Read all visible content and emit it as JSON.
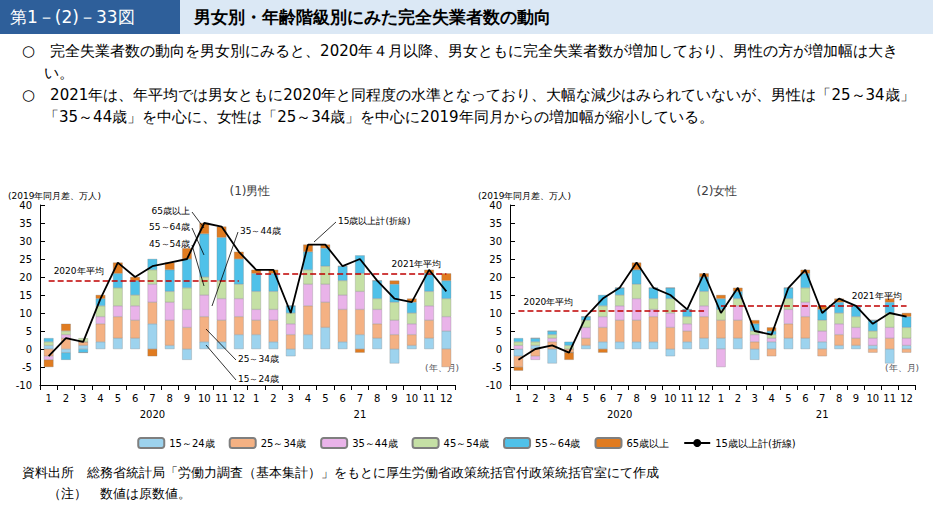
{
  "header": {
    "figure_no": "第1－(2)－33図",
    "title": "男女別・年齢階級別にみた完全失業者数の動向"
  },
  "bullets": [
    "○　完全失業者数の動向を男女別にみると、2020年４月以降、男女ともに完全失業者数が増加しており、男性の方が増加幅は大きい。",
    "○　2021年は、年平均では男女ともに2020年と同程度の水準となっており、大幅な減少はみられていないが、男性は「25～34歳」「35～44歳」を中心に、女性は「25～34歳」を中心に2019年同月からの増加幅が縮小している。"
  ],
  "notes": [
    "資料出所　総務省統計局「労働力調査（基本集計）」をもとに厚生労働省政策統括官付政策統括官室にて作成",
    "　　（注）　数値は原数値。"
  ],
  "chart_data": [
    {
      "type": "bar",
      "title": "(1)男性",
      "y_axis_label": "(2019年同月差、万人)",
      "x_axis_label": "(年、月)",
      "categories": [
        "1",
        "2",
        "3",
        "4",
        "5",
        "6",
        "7",
        "8",
        "9",
        "10",
        "11",
        "12",
        "1",
        "2",
        "3",
        "4",
        "5",
        "6",
        "7",
        "8",
        "9",
        "10",
        "11",
        "12"
      ],
      "years": [
        "2020",
        "21"
      ],
      "ylim": [
        -10,
        40
      ],
      "yticks": [
        -10,
        -5,
        0,
        5,
        10,
        15,
        20,
        25,
        30,
        35,
        40
      ],
      "stacked": true,
      "grid": false,
      "legend": "bottom",
      "series": [
        {
          "name": "15～24歳",
          "color": "#9dd3ee",
          "values": [
            1,
            -1,
            1,
            2,
            3,
            3,
            7,
            1,
            -3,
            2,
            2,
            4,
            4,
            2,
            -2,
            4,
            6,
            2,
            4,
            3,
            -4,
            1,
            3,
            5
          ]
        },
        {
          "name": "25～34歳",
          "color": "#f4b183",
          "values": [
            -2,
            3,
            1,
            5,
            6,
            5,
            6,
            7,
            6,
            7,
            6,
            5,
            4,
            6,
            4,
            8,
            7,
            9,
            7,
            4,
            4,
            3,
            5,
            -5
          ]
        },
        {
          "name": "35～44歳",
          "color": "#e9b3e9",
          "values": [
            -1,
            1,
            0,
            2,
            3,
            4,
            5,
            5,
            5,
            6,
            6,
            5,
            3,
            3,
            3,
            6,
            5,
            4,
            5,
            4,
            4,
            3,
            4,
            4
          ]
        },
        {
          "name": "45～54歳",
          "color": "#c5e0a5",
          "values": [
            1,
            1,
            1,
            3,
            5,
            3,
            4,
            3,
            6,
            5,
            5,
            4,
            5,
            5,
            3,
            4,
            5,
            4,
            5,
            3,
            5,
            3,
            4,
            5
          ]
        },
        {
          "name": "55～64歳",
          "color": "#4fc1e9",
          "values": [
            1,
            -2,
            -1,
            2,
            4,
            4,
            3,
            6,
            8,
            12,
            12,
            7,
            5,
            5,
            2,
            5,
            5,
            4,
            5,
            5,
            5,
            3,
            5,
            5
          ]
        },
        {
          "name": "65歳以上",
          "color": "#e07b20",
          "values": [
            -2,
            2,
            0,
            1,
            3,
            1,
            -2,
            2,
            3,
            3,
            3,
            2,
            1,
            1,
            0,
            2,
            1,
            0,
            -1,
            0,
            1,
            1,
            1,
            2
          ]
        },
        {
          "name": "15歳以上計(折線)",
          "type": "line",
          "line_style": "solid",
          "color": "#000000",
          "values": [
            -2,
            3,
            2,
            14,
            24,
            20,
            23,
            24,
            25,
            35,
            34,
            27,
            22,
            22,
            10,
            29,
            29,
            23,
            25,
            19,
            14,
            13,
            22,
            16
          ]
        }
      ],
      "reference_lines": [
        {
          "label": "2020年平均",
          "value": 19,
          "year": "2020",
          "color": "#c00000"
        },
        {
          "label": "2021年平均",
          "value": 21,
          "year": "21",
          "color": "#c00000"
        }
      ],
      "annotations": [
        "65歳以上",
        "55～64歳",
        "45～54歳",
        "35～44歳",
        "25～34歳",
        "15～24歳",
        "15歳以上計(折線)"
      ]
    },
    {
      "type": "bar",
      "title": "(2)女性",
      "y_axis_label": "(2019年同月差、万人)",
      "x_axis_label": "(年、月)",
      "categories": [
        "1",
        "2",
        "3",
        "4",
        "5",
        "6",
        "7",
        "8",
        "9",
        "10",
        "11",
        "12",
        "1",
        "2",
        "3",
        "4",
        "5",
        "6",
        "7",
        "8",
        "9",
        "10",
        "11",
        "12"
      ],
      "years": [
        "2020",
        "21"
      ],
      "ylim": [
        -10,
        40
      ],
      "yticks": [
        -10,
        -5,
        0,
        5,
        10,
        15,
        20,
        25,
        30,
        35,
        40
      ],
      "stacked": true,
      "grid": false,
      "series": [
        {
          "name": "15～24歳",
          "color": "#9dd3ee",
          "values": [
            -2,
            1,
            -4,
            0,
            1,
            2,
            2,
            2,
            2,
            -2,
            2,
            3,
            3,
            3,
            -3,
            2,
            3,
            3,
            2,
            1,
            1,
            1,
            -4,
            1
          ]
        },
        {
          "name": "25～34歳",
          "color": "#f4b183",
          "values": [
            -3,
            -2,
            2,
            -1,
            2,
            4,
            6,
            6,
            7,
            6,
            3,
            6,
            5,
            5,
            2,
            -2,
            4,
            6,
            -2,
            3,
            2,
            -1,
            3,
            -1
          ]
        },
        {
          "name": "35～44歳",
          "color": "#e9b3e9",
          "values": [
            1,
            -1,
            1,
            0,
            3,
            3,
            4,
            6,
            2,
            4,
            2,
            3,
            -5,
            4,
            2,
            1,
            4,
            4,
            3,
            3,
            3,
            2,
            3,
            2
          ]
        },
        {
          "name": "45～54歳",
          "color": "#c5e0a5",
          "values": [
            1,
            1,
            1,
            1,
            2,
            3,
            3,
            4,
            3,
            4,
            2,
            4,
            3,
            2,
            1,
            1,
            3,
            4,
            3,
            3,
            3,
            2,
            4,
            3
          ]
        },
        {
          "name": "55～64歳",
          "color": "#4fc1e9",
          "values": [
            1,
            1,
            1,
            1,
            1,
            3,
            2,
            4,
            3,
            3,
            2,
            4,
            3,
            2,
            2,
            1,
            3,
            4,
            3,
            3,
            3,
            3,
            3,
            3
          ]
        },
        {
          "name": "65歳以上",
          "color": "#e07b20",
          "values": [
            -1,
            0,
            0,
            -2,
            0,
            -1,
            0,
            2,
            0,
            0,
            0,
            1,
            1,
            1,
            1,
            1,
            0,
            1,
            1,
            1,
            0,
            0,
            1,
            1
          ]
        },
        {
          "name": "15歳以上計(折線)",
          "type": "line",
          "line_style": "solid",
          "color": "#000000",
          "values": [
            -3,
            0,
            1,
            -1,
            9,
            14,
            17,
            24,
            17,
            15,
            11,
            21,
            10,
            17,
            5,
            4,
            17,
            22,
            10,
            14,
            12,
            7,
            10,
            9
          ]
        }
      ],
      "reference_lines": [
        {
          "label": "2020年平均",
          "value": 10.5,
          "year": "2020",
          "color": "#c00000"
        },
        {
          "label": "2021年平均",
          "value": 12,
          "year": "21",
          "color": "#c00000"
        }
      ]
    }
  ]
}
